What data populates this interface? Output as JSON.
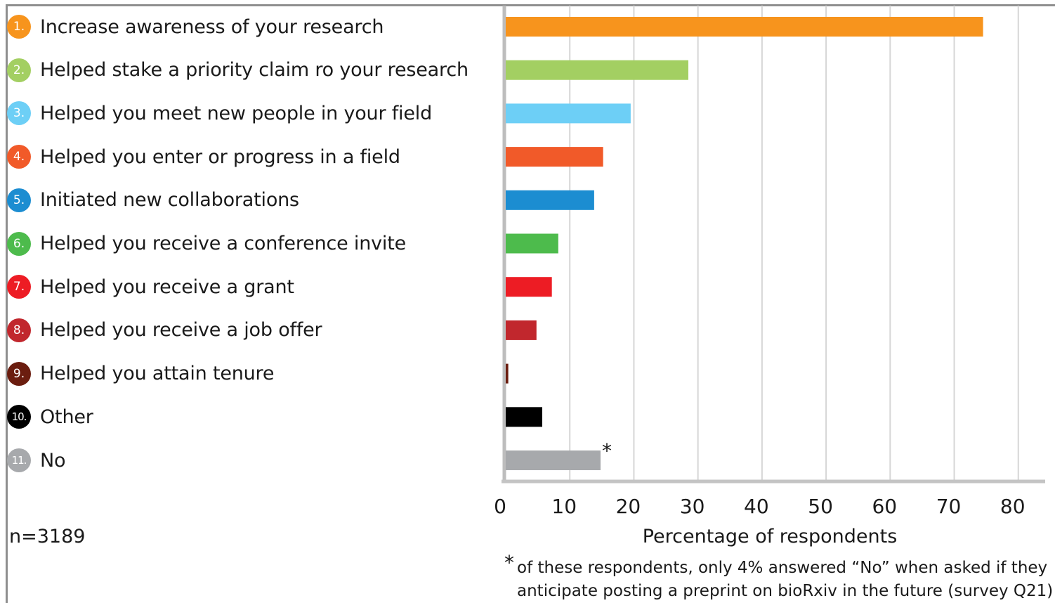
{
  "chart_data": {
    "type": "bar",
    "orientation": "horizontal",
    "categories": [
      {
        "num": "1.",
        "label": "Increase awareness of your research",
        "value": 74.5,
        "color": "#f7941d"
      },
      {
        "num": "2.",
        "label": "Helped stake a priority claim ro your research",
        "value": 28.5,
        "color": "#a3cf62"
      },
      {
        "num": "3.",
        "label": "Helped you meet new people in your field",
        "value": 19.5,
        "color": "#6dcff6"
      },
      {
        "num": "4.",
        "label": "Helped you enter or progress in a field",
        "value": 15.2,
        "color": "#f15a29"
      },
      {
        "num": "5.",
        "label": "Initiated new collaborations",
        "value": 13.8,
        "color": "#1c8dd1"
      },
      {
        "num": "6.",
        "label": "Helped you receive a conference invite",
        "value": 8.2,
        "color": "#4dbb4c"
      },
      {
        "num": "7.",
        "label": "Helped you receive a grant",
        "value": 7.2,
        "color": "#ed1c24"
      },
      {
        "num": "8.",
        "label": "Helped you receive a job offer",
        "value": 4.8,
        "color": "#c1272d"
      },
      {
        "num": "9.",
        "label": "Helped you attain tenure",
        "value": 0.4,
        "color": "#6b1d0f"
      },
      {
        "num": "10.",
        "label": "Other",
        "value": 5.7,
        "color": "#000000"
      },
      {
        "num": "11.",
        "label": "No",
        "value": 14.8,
        "color": "#a7a9ac",
        "annotation": "*"
      }
    ],
    "xlabel": "Percentage of respondents",
    "ylabel": "",
    "xlim": [
      0,
      82
    ],
    "x_ticks": [
      "0",
      "10",
      "20",
      "30",
      "40",
      "50",
      "60",
      "70",
      "80"
    ],
    "grid": "vertical",
    "legend": "none"
  },
  "sample_size": "n=3189",
  "footnote": {
    "star": "*",
    "line1": "of these respondents, only 4% answered “No” when asked if they",
    "line2": "anticipate posting a preprint on bioRxiv in the future (survey Q21)"
  }
}
